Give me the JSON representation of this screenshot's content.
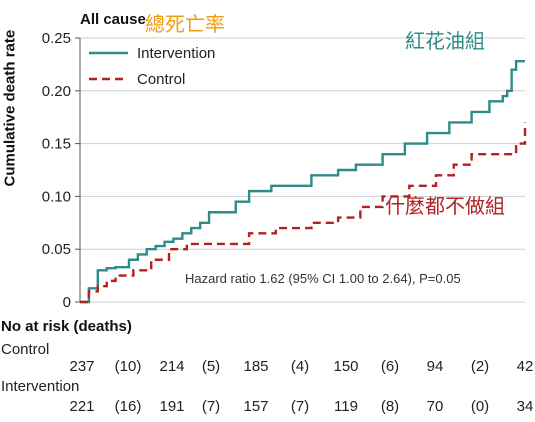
{
  "chart_data": {
    "type": "line",
    "title": "All cause",
    "xlabel": "",
    "ylabel": "Cumulative death rate",
    "ylim": [
      0,
      0.25
    ],
    "yticks": [
      "0",
      "0.05",
      "0.10",
      "0.15",
      "0.20",
      "0.25"
    ],
    "legend_position": "top-left",
    "series": [
      {
        "name": "Intervention",
        "style": "solid",
        "color": "#2e8b8b",
        "x": [
          0,
          2,
          4,
          6,
          8,
          11,
          13,
          15,
          17,
          19,
          21,
          23,
          25,
          27,
          29,
          32,
          35,
          38,
          43,
          48,
          52,
          58,
          62,
          68,
          73,
          78,
          83,
          88,
          92,
          95,
          96,
          97,
          98,
          99,
          100
        ],
        "values": [
          0,
          0.013,
          0.03,
          0.032,
          0.033,
          0.04,
          0.045,
          0.05,
          0.053,
          0.057,
          0.06,
          0.065,
          0.07,
          0.075,
          0.085,
          0.085,
          0.095,
          0.105,
          0.11,
          0.11,
          0.12,
          0.125,
          0.13,
          0.14,
          0.15,
          0.16,
          0.17,
          0.18,
          0.19,
          0.195,
          0.2,
          0.22,
          0.228,
          0.228,
          0.228
        ]
      },
      {
        "name": "Control",
        "style": "dashed",
        "color": "#b22222",
        "x": [
          0,
          2,
          4,
          6,
          8,
          12,
          16,
          20,
          24,
          28,
          33,
          38,
          44,
          48,
          52,
          58,
          63,
          68,
          74,
          80,
          84,
          88,
          92,
          98,
          99,
          100
        ],
        "values": [
          0,
          0.01,
          0.015,
          0.02,
          0.025,
          0.03,
          0.04,
          0.05,
          0.055,
          0.055,
          0.055,
          0.065,
          0.07,
          0.07,
          0.075,
          0.08,
          0.09,
          0.1,
          0.11,
          0.12,
          0.13,
          0.14,
          0.14,
          0.15,
          0.15,
          0.17
        ]
      }
    ],
    "annotation": "Hazard ratio 1.62 (95% CI 1.00 to 2.64), P=0.05"
  },
  "overlays": {
    "top": {
      "text": "總死亡率",
      "color": "#f39c12"
    },
    "intervention": {
      "text": "紅花油組",
      "color": "#2e8b8b"
    },
    "control": {
      "text": "什麼都不做組",
      "color": "#b22222"
    }
  },
  "risk_table": {
    "title": "No at risk (deaths)",
    "groups": [
      {
        "name": "Control",
        "values": [
          "237",
          "(10)",
          "214",
          "(5)",
          "185",
          "(4)",
          "150",
          "(6)",
          "94",
          "(2)",
          "42"
        ]
      },
      {
        "name": "Intervention",
        "values": [
          "221",
          "(16)",
          "191",
          "(7)",
          "157",
          "(7)",
          "119",
          "(8)",
          "70",
          "(0)",
          "34"
        ]
      }
    ]
  }
}
